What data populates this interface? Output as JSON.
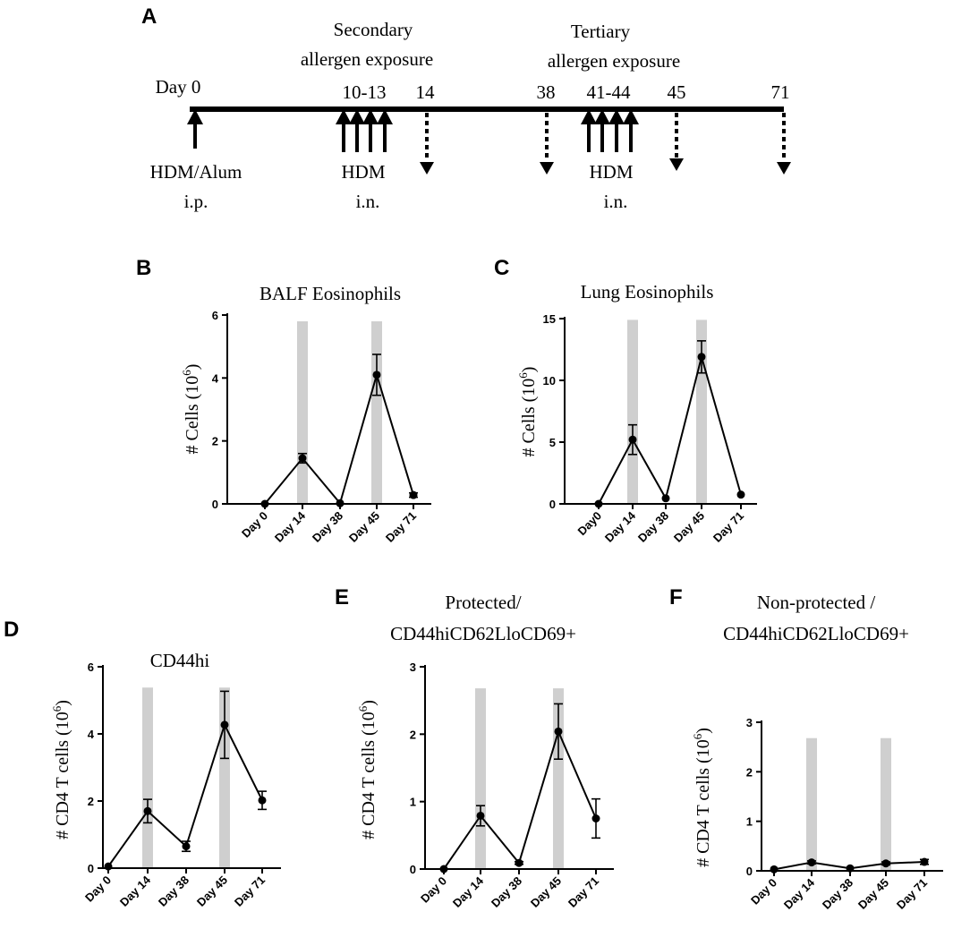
{
  "timeline": {
    "panel_label": "A",
    "secondary_label_line1": "Secondary",
    "secondary_label_line2": "allergen exposure",
    "tertiary_label_line1": "Tertiary",
    "tertiary_label_line2": "allergen exposure",
    "day_labels": [
      "Day 0",
      "10-13",
      "14",
      "38",
      "41-44",
      "45",
      "71"
    ],
    "hdm_alum_line1": "HDM/Alum",
    "hdm_alum_line2": "i.p.",
    "hdm_secondary_line1": "HDM",
    "hdm_secondary_line2": "i.n.",
    "hdm_tertiary_line1": "HDM",
    "hdm_tertiary_line2": "i.n."
  },
  "chart_data": [
    {
      "panel_label": "B",
      "type": "line",
      "title_lines": [
        "BALF Eosinophils"
      ],
      "ylabel_main": "# Cells (10",
      "ylabel_sup": "6",
      "ylabel_close": ")",
      "categories": [
        "Day 0",
        "Day 14",
        "Day 38",
        "Day 45",
        "Day 71"
      ],
      "values": [
        0.0,
        1.45,
        0.02,
        4.1,
        0.28
      ],
      "errors": [
        0.0,
        0.15,
        0.0,
        0.65,
        0.07
      ],
      "ylim": [
        0,
        6
      ],
      "yticks": [
        "0",
        "2",
        "4",
        "6"
      ],
      "ytick_values": [
        0,
        2,
        4,
        6
      ],
      "shade_max": 5.8,
      "shaded_categories": [
        "Day 14",
        "Day 45"
      ]
    },
    {
      "panel_label": "C",
      "type": "line",
      "title_lines": [
        "Lung Eosinophils"
      ],
      "ylabel_main": "# Cells (10",
      "ylabel_sup": "6",
      "ylabel_close": ")",
      "categories": [
        "Day0",
        "Day 14",
        "Day 38",
        "Day 45",
        "Day 71"
      ],
      "values": [
        0.0,
        5.2,
        0.45,
        11.9,
        0.75
      ],
      "errors": [
        0.0,
        1.2,
        0.0,
        1.3,
        0.0
      ],
      "ylim": [
        0,
        15
      ],
      "yticks": [
        "0",
        "5",
        "10",
        "15"
      ],
      "ytick_values": [
        0,
        5,
        10,
        15
      ],
      "shade_max": 14.9,
      "shaded_categories": [
        "Day 14",
        "Day 45"
      ]
    },
    {
      "panel_label": "D",
      "type": "line",
      "title_lines": [
        "CD44hi"
      ],
      "ylabel_main": "# CD4 T cells  (10",
      "ylabel_sup": "6",
      "ylabel_close": ")",
      "categories": [
        "Day 0",
        "Day 14",
        "Day 38",
        "Day 45",
        "Day 71"
      ],
      "values": [
        0.05,
        1.7,
        0.65,
        4.27,
        2.02
      ],
      "errors": [
        0.0,
        0.35,
        0.15,
        1.0,
        0.27
      ],
      "ylim": [
        0,
        6
      ],
      "yticks": [
        "0",
        "2",
        "4",
        "6"
      ],
      "ytick_values": [
        0,
        2,
        4,
        6
      ],
      "shade_max": 5.38,
      "shaded_categories": [
        "Day 14",
        "Day 45"
      ]
    },
    {
      "panel_label": "E",
      "type": "line",
      "title_lines": [
        "Protected/",
        "CD44hiCD62LloCD69+"
      ],
      "ylabel_main": "# CD4 T cells (10",
      "ylabel_sup": "6",
      "ylabel_close": ")",
      "categories": [
        "Day 0",
        "Day 14",
        "Day 38",
        "Day 45",
        "Day 71"
      ],
      "values": [
        0.0,
        0.79,
        0.09,
        2.04,
        0.75
      ],
      "errors": [
        0.0,
        0.15,
        0.02,
        0.41,
        0.29
      ],
      "ylim": [
        0,
        3
      ],
      "yticks": [
        "0",
        "1",
        "2",
        "3"
      ],
      "ytick_values": [
        0,
        1,
        2,
        3
      ],
      "shade_max": 2.68,
      "shaded_categories": [
        "Day 14",
        "Day 45"
      ]
    },
    {
      "panel_label": "F",
      "type": "line",
      "title_lines": [
        "Non-protected /",
        "CD44hiCD62LloCD69+"
      ],
      "ylabel_main": "# CD4 T cells  (10",
      "ylabel_sup": "6",
      "ylabel_close": ")",
      "categories": [
        "Day 0",
        "Day 14",
        "Day 38",
        "Day 45",
        "Day 71"
      ],
      "values": [
        0.03,
        0.17,
        0.05,
        0.15,
        0.18
      ],
      "errors": [
        0.0,
        0.03,
        0.0,
        0.03,
        0.05
      ],
      "ylim": [
        0,
        3
      ],
      "yticks": [
        "0",
        "1",
        "2",
        "3"
      ],
      "ytick_values": [
        0,
        1,
        2,
        3
      ],
      "shade_max": 2.68,
      "shaded_categories": [
        "Day 14",
        "Day 45"
      ]
    }
  ]
}
